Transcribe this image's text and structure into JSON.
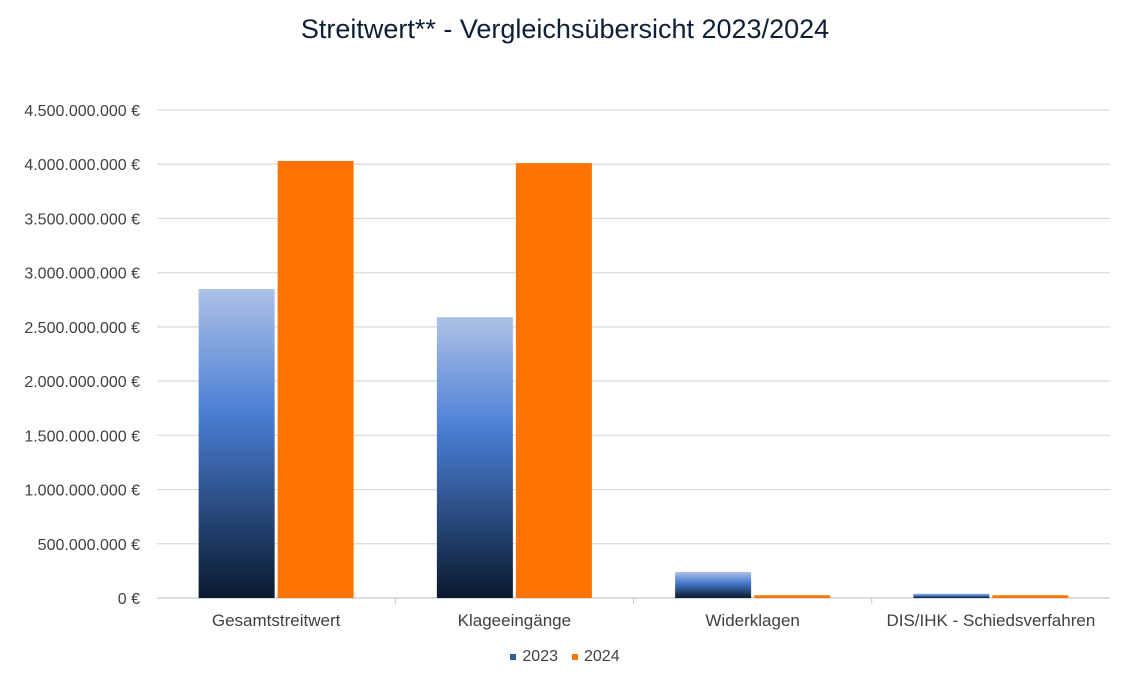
{
  "chart_data": {
    "type": "bar",
    "title": "Streitwert** - Vergleichsübersicht 2023/2024",
    "categories": [
      "Gesamtstreitwert",
      "Klageeingänge",
      "Widerklagen",
      "DIS/IHK - Schiedsverfahren"
    ],
    "series": [
      {
        "name": "2023",
        "values": [
          2850000000,
          2590000000,
          240000000,
          40000000
        ],
        "color": "#4a7fd4"
      },
      {
        "name": "2024",
        "values": [
          4030000000,
          4010000000,
          25000000,
          25000000
        ],
        "color": "#ff7300"
      }
    ],
    "yticks": [
      "0 €",
      "500.000.000 €",
      "1.000.000.000 €",
      "1.500.000.000 €",
      "2.000.000.000 €",
      "2.500.000.000 €",
      "3.000.000.000 €",
      "3.500.000.000 €",
      "4.000.000.000 €",
      "4.500.000.000 €"
    ],
    "ylim": [
      0,
      4500000000
    ],
    "grid": true,
    "legend_position": "bottom"
  }
}
